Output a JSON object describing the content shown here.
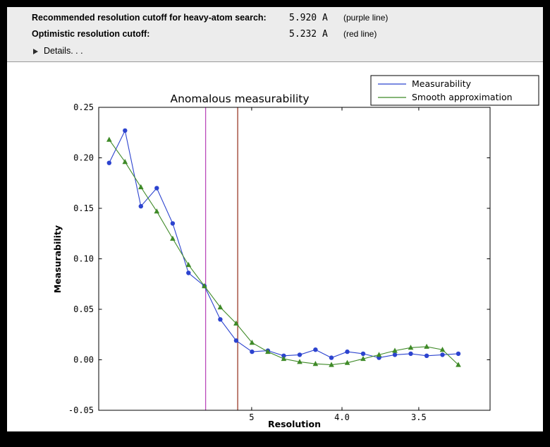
{
  "header": {
    "rows": [
      {
        "label": "Recommended resolution cutoff for heavy-atom search:",
        "value": "5.920 A",
        "note": "(purple line)"
      },
      {
        "label": "Optimistic resolution cutoff:",
        "value": "5.232 A",
        "note": "(red line)"
      }
    ],
    "details_label": "Details. . ."
  },
  "chart_data": {
    "type": "line",
    "title": "Anomalous measurability",
    "xlabel": "Resolution",
    "ylabel": "Measurability",
    "x_scale": "1/d^2 (resolution in Angstrom, decreasing to the right)",
    "xlim_inv_d2": [
      0.0019,
      0.0994
    ],
    "ylim": [
      -0.05,
      0.25
    ],
    "xticks": [
      {
        "v": 0.04,
        "label": "5"
      },
      {
        "v": 0.0625,
        "label": "4.0"
      },
      {
        "v": 0.081633,
        "label": "3.5"
      }
    ],
    "yticks": [
      {
        "v": 0.25,
        "label": "0.25"
      },
      {
        "v": 0.2,
        "label": "0.20"
      },
      {
        "v": 0.15,
        "label": "0.15"
      },
      {
        "v": 0.1,
        "label": "0.10"
      },
      {
        "v": 0.05,
        "label": "0.05"
      },
      {
        "v": 0.0,
        "label": "0.00"
      },
      {
        "v": -0.05,
        "label": "-0.05"
      }
    ],
    "x_inv_d2": [
      0.0045,
      0.00845,
      0.01241,
      0.01636,
      0.02032,
      0.02427,
      0.02823,
      0.03218,
      0.03614,
      0.04009,
      0.04405,
      0.048,
      0.05196,
      0.05591,
      0.05987,
      0.06382,
      0.06778,
      0.07173,
      0.07569,
      0.07964,
      0.0836,
      0.08755,
      0.0915
    ],
    "x_resolution_A": [
      14.9,
      10.9,
      9.0,
      7.8,
      7.0,
      6.4,
      5.95,
      5.6,
      5.3,
      5.0,
      4.8,
      4.6,
      4.4,
      4.2,
      4.1,
      3.96,
      3.84,
      3.73,
      3.63,
      3.54,
      3.46,
      3.38,
      3.31
    ],
    "series": [
      {
        "name": "Measurability",
        "color": "#2c43cf",
        "marker": "circle",
        "values": [
          0.195,
          0.227,
          0.152,
          0.17,
          0.135,
          0.086,
          0.073,
          0.04,
          0.019,
          0.008,
          0.009,
          0.004,
          0.005,
          0.01,
          0.002,
          0.008,
          0.006,
          0.002,
          0.005,
          0.006,
          0.004,
          0.005,
          0.006
        ]
      },
      {
        "name": "Smooth approximation",
        "color": "#3f8a28",
        "marker": "triangle",
        "values": [
          0.218,
          0.196,
          0.171,
          0.147,
          0.12,
          0.094,
          0.073,
          0.052,
          0.036,
          0.017,
          0.008,
          0.001,
          -0.002,
          -0.004,
          -0.005,
          -0.003,
          0.001,
          0.005,
          0.009,
          0.012,
          0.013,
          0.01,
          -0.005
        ]
      }
    ],
    "vlines": [
      {
        "name": "recommended-cutoff",
        "x_inv_d2": 0.028534,
        "resolution_A": 5.92,
        "color": "#bb4abb"
      },
      {
        "name": "optimistic-cutoff",
        "x_inv_d2": 0.036531,
        "resolution_A": 5.232,
        "color": "#993a28"
      }
    ],
    "legend": {
      "position": "upper-right",
      "entries": [
        "Measurability",
        "Smooth approximation"
      ]
    }
  }
}
